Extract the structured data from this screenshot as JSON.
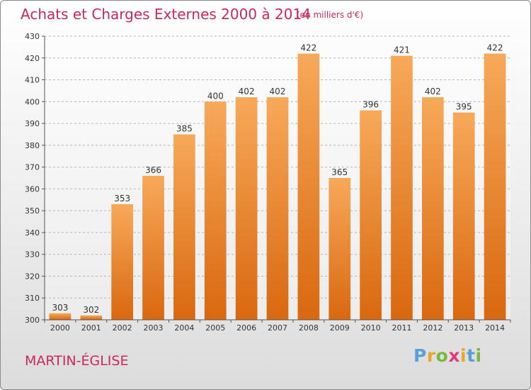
{
  "header": {
    "title": "Achats et Charges Externes 2000 à 2014",
    "subtitle": "(en milliers d'€)"
  },
  "footer": {
    "location": "MARTIN-ÉGLISE",
    "logo_letters": [
      "P",
      "r",
      "o",
      "x",
      "i",
      "t",
      "i"
    ],
    "logo_colors": [
      "#5aa0d8",
      "#e8a62b",
      "#7ab840",
      "#e03a7a",
      "#e8a62b",
      "#5aa0d8",
      "#7ab840"
    ]
  },
  "chart_data": {
    "type": "bar",
    "categories": [
      "2000",
      "2001",
      "2002",
      "2003",
      "2004",
      "2005",
      "2006",
      "2007",
      "2008",
      "2009",
      "2010",
      "2011",
      "2012",
      "2013",
      "2014"
    ],
    "values": [
      303,
      302,
      353,
      366,
      385,
      400,
      402,
      402,
      422,
      365,
      396,
      421,
      402,
      395,
      422
    ],
    "data_labels": [
      "303",
      "302",
      "353",
      "366",
      "385",
      "400",
      "402",
      "402",
      "422",
      "365",
      "396",
      "421",
      "402",
      "395",
      "422"
    ],
    "title": "Achats et Charges Externes 2000 à 2014",
    "xlabel": "",
    "ylabel": "",
    "ylim": [
      300,
      430
    ],
    "yticks": [
      300,
      310,
      320,
      330,
      340,
      350,
      360,
      370,
      380,
      390,
      400,
      410,
      420,
      430
    ],
    "grid": "horizontal dashed",
    "bar_color": "#f08a24",
    "legend": "none"
  }
}
